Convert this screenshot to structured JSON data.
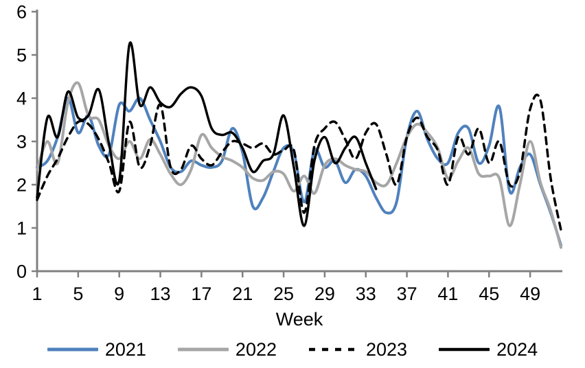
{
  "chart_data": {
    "type": "line",
    "title": "",
    "xlabel": "Week",
    "ylabel": "",
    "xlim": [
      1,
      52
    ],
    "ylim": [
      0,
      6
    ],
    "grid": false,
    "legend_position": "bottom",
    "axis_color": "#808080",
    "text_color": "#000000",
    "background_color": "#ffffff",
    "x_ticks": [
      1,
      5,
      9,
      13,
      17,
      21,
      25,
      29,
      33,
      37,
      41,
      45,
      49
    ],
    "y_ticks": [
      0,
      1,
      2,
      3,
      4,
      5,
      6
    ],
    "x": [
      1,
      2,
      3,
      4,
      5,
      6,
      7,
      8,
      9,
      10,
      11,
      12,
      13,
      14,
      15,
      16,
      17,
      18,
      19,
      20,
      21,
      22,
      23,
      24,
      25,
      26,
      27,
      28,
      29,
      30,
      31,
      32,
      33,
      34,
      35,
      36,
      37,
      38,
      39,
      40,
      41,
      42,
      43,
      44,
      45,
      46,
      47,
      48,
      49,
      50,
      51,
      52
    ],
    "series": [
      {
        "name": "2021",
        "color": "#4f81bd",
        "style": "solid",
        "stroke_width": 4,
        "values": [
          2.4,
          2.55,
          3.1,
          4.0,
          3.2,
          3.6,
          2.9,
          2.7,
          3.85,
          3.7,
          4.0,
          3.5,
          3.0,
          2.4,
          2.3,
          2.55,
          2.45,
          2.4,
          2.55,
          3.3,
          2.75,
          1.5,
          1.7,
          2.3,
          2.85,
          2.75,
          1.6,
          2.8,
          2.4,
          2.55,
          2.05,
          2.35,
          2.2,
          1.7,
          1.35,
          1.6,
          3.1,
          3.7,
          3.05,
          2.6,
          2.5,
          3.2,
          3.3,
          2.5,
          2.9,
          3.8,
          1.85,
          2.4,
          2.7,
          2.0,
          1.35,
          0.6
        ]
      },
      {
        "name": "2022",
        "color": "#a6a6a6",
        "style": "solid",
        "stroke_width": 4,
        "values": [
          2.35,
          3.0,
          2.5,
          3.9,
          4.35,
          3.6,
          3.5,
          2.9,
          2.6,
          3.0,
          2.6,
          3.05,
          2.7,
          2.25,
          2.0,
          2.35,
          3.15,
          2.85,
          2.65,
          2.55,
          2.4,
          2.15,
          2.1,
          2.3,
          2.25,
          1.85,
          2.2,
          1.8,
          2.45,
          2.6,
          2.45,
          2.35,
          2.3,
          2.05,
          2.0,
          2.5,
          3.1,
          3.4,
          3.2,
          2.85,
          2.15,
          2.55,
          2.85,
          2.25,
          2.2,
          2.15,
          1.05,
          2.0,
          3.0,
          2.05,
          1.4,
          0.55
        ]
      },
      {
        "name": "2023",
        "color": "#000000",
        "style": "dashed",
        "stroke_width": 3.5,
        "values": [
          1.65,
          2.2,
          2.6,
          3.1,
          3.45,
          3.4,
          3.05,
          2.5,
          1.85,
          3.45,
          2.4,
          2.9,
          3.85,
          2.4,
          2.35,
          2.9,
          2.6,
          2.45,
          2.75,
          3.0,
          2.95,
          2.85,
          2.95,
          2.7,
          2.8,
          2.8,
          1.35,
          2.9,
          3.3,
          3.45,
          3.05,
          2.6,
          3.2,
          3.4,
          2.7,
          2.0,
          3.1,
          3.55,
          3.1,
          2.8,
          2.0,
          3.1,
          2.7,
          3.3,
          2.5,
          3.0,
          2.0,
          2.3,
          3.75,
          3.95,
          2.15,
          0.95
        ]
      },
      {
        "name": "2024",
        "color": "#000000",
        "style": "solid",
        "stroke_width": 3.5,
        "values": [
          1.7,
          3.55,
          3.1,
          4.15,
          3.55,
          3.6,
          4.2,
          2.95,
          2.1,
          5.25,
          3.85,
          4.25,
          3.9,
          3.8,
          4.1,
          4.25,
          4.05,
          3.3,
          3.15,
          3.2,
          2.85,
          2.3,
          2.55,
          2.7,
          3.6,
          2.4,
          1.05,
          2.55,
          3.1,
          2.5,
          2.85,
          3.1,
          2.5,
          1.9
        ]
      }
    ]
  }
}
